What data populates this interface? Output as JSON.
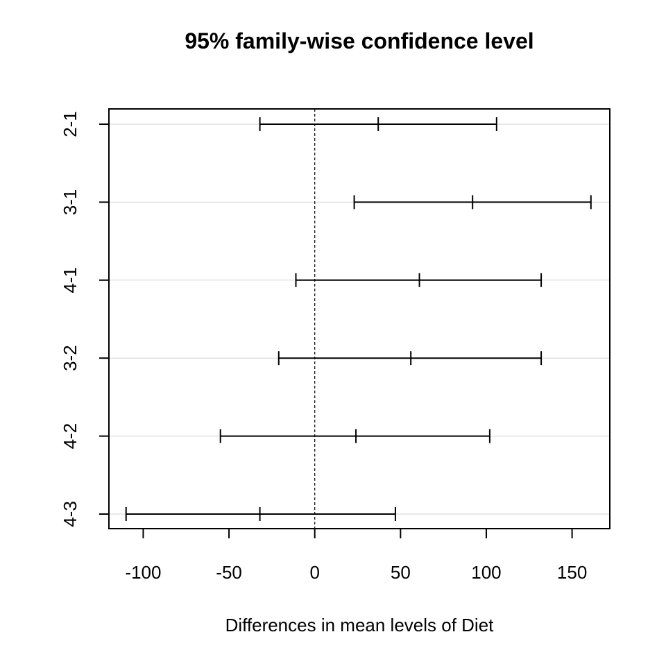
{
  "chart_data": {
    "type": "interval",
    "title": "95% family-wise confidence level",
    "xlabel": "Differences in mean levels of Diet",
    "ylabel": "",
    "xlim": [
      -120,
      172
    ],
    "x_ticks": [
      -100,
      -50,
      0,
      50,
      100,
      150
    ],
    "x_tick_labels": [
      "-100",
      "-50",
      "0",
      "50",
      "100",
      "150"
    ],
    "reference_line": 0,
    "grid": "horizontal",
    "categories": [
      "2-1",
      "3-1",
      "4-1",
      "3-2",
      "4-2",
      "4-3"
    ],
    "diff": [
      37,
      92,
      61,
      56,
      24,
      -32
    ],
    "lwr": [
      -32,
      23,
      -11,
      -21,
      -55,
      -110
    ],
    "upr": [
      106,
      161,
      132,
      132,
      102,
      47
    ]
  }
}
